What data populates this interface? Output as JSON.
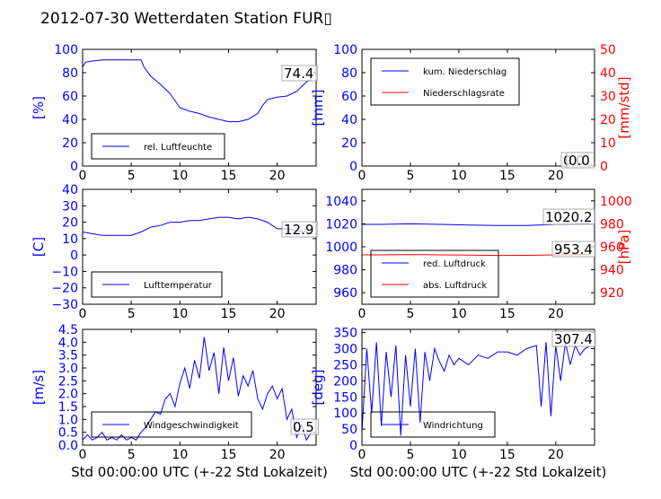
{
  "title": "2012-07-30 Wetterdaten Station FUR▯",
  "colors": {
    "left_axis": "#0000ff",
    "right_axis": "#ff0000",
    "series_blue": "#0000ff",
    "series_red": "#ff0000"
  },
  "chart_data": [
    {
      "id": "humidity",
      "type": "line",
      "xlim": [
        0,
        24
      ],
      "xticks": [
        0,
        5,
        10,
        15,
        20
      ],
      "xlabel": "",
      "ylim": [
        0,
        100
      ],
      "yticks": [
        0,
        20,
        40,
        60,
        80,
        100
      ],
      "ylabel": "[%]",
      "legend": "lower-left",
      "current_value": "74.4",
      "series": [
        {
          "name": "rel. Luftfeuchte",
          "axis": "left",
          "color": "#0000ff",
          "x": [
            0,
            0.3,
            1,
            2,
            3,
            4,
            5,
            6,
            6.3,
            7,
            8,
            9,
            10,
            11,
            12,
            13,
            14,
            15,
            16,
            17,
            18,
            18.5,
            19,
            20,
            21,
            22,
            23,
            23.5
          ],
          "y": [
            85,
            89,
            90,
            91,
            91,
            91,
            91,
            91,
            85,
            77,
            70,
            62,
            50,
            47,
            45,
            42,
            40,
            38,
            38,
            40,
            45,
            52,
            57,
            59,
            60,
            64,
            72,
            74.4
          ]
        }
      ]
    },
    {
      "id": "precip",
      "type": "line",
      "xlim": [
        0,
        24
      ],
      "xticks": [
        0,
        5,
        10,
        15,
        20
      ],
      "xlabel": "",
      "ylim": [
        0,
        100
      ],
      "yticks": [
        0,
        20,
        40,
        60,
        80,
        100
      ],
      "ylabel": "[mm]",
      "y2lim": [
        0,
        50
      ],
      "y2ticks": [
        0,
        10,
        20,
        30,
        40,
        50
      ],
      "y2label": "[mm/std]",
      "legend": "top-left",
      "current_value": "0.0",
      "current_value2": "0.0",
      "series": [
        {
          "name": "kum. Niederschlag",
          "axis": "left",
          "color": "#0000ff",
          "x": [
            0,
            24
          ],
          "y": [
            0,
            0
          ]
        },
        {
          "name": "Niederschlagsrate",
          "axis": "right",
          "color": "#ff0000",
          "x": [
            0,
            24
          ],
          "y": [
            0,
            0
          ]
        }
      ]
    },
    {
      "id": "temperature",
      "type": "line",
      "xlim": [
        0,
        24
      ],
      "xticks": [
        0,
        5,
        10,
        15,
        20
      ],
      "xlabel": "",
      "ylim": [
        -30,
        40
      ],
      "yticks": [
        -30,
        -20,
        -10,
        0,
        10,
        20,
        30,
        40
      ],
      "ylabel": "[C]",
      "legend": "lower-left",
      "current_value": "12.9",
      "series": [
        {
          "name": "Lufttemperatur",
          "axis": "left",
          "color": "#0000ff",
          "x": [
            0,
            1,
            2,
            3,
            4,
            5,
            6,
            7,
            8,
            9,
            10,
            11,
            12,
            13,
            14,
            15,
            16,
            17,
            18,
            19,
            20,
            21,
            22,
            23,
            23.5
          ],
          "y": [
            14,
            13,
            12,
            12,
            12,
            12,
            14,
            17,
            18,
            20,
            20,
            21,
            21,
            22,
            23,
            23,
            22,
            23,
            22,
            20,
            16,
            16,
            15,
            14,
            12.9
          ]
        }
      ]
    },
    {
      "id": "pressure",
      "type": "line",
      "xlim": [
        0,
        24
      ],
      "xticks": [
        0,
        5,
        10,
        15,
        20
      ],
      "xlabel": "",
      "ylim": [
        950,
        1050
      ],
      "yticks": [
        960,
        980,
        1000,
        1020,
        1040
      ],
      "ylabel": "",
      "y2lim": [
        910,
        1010
      ],
      "y2ticks": [
        920,
        940,
        960,
        980,
        1000
      ],
      "y2label": "[hPa]",
      "legend": "lower-left",
      "current_value": "1020.2",
      "current_value2": "953.4",
      "series": [
        {
          "name": "red. Luftdruck",
          "axis": "left",
          "color": "#0000ff",
          "x": [
            0,
            2,
            5,
            8,
            11,
            14,
            17,
            20,
            23.5
          ],
          "y": [
            1019.5,
            1019.5,
            1020,
            1019.5,
            1019,
            1018.5,
            1018.5,
            1019.5,
            1020.2
          ]
        },
        {
          "name": "abs. Luftdruck",
          "axis": "right",
          "color": "#ff0000",
          "x": [
            0,
            2,
            5,
            8,
            11,
            14,
            17,
            20,
            23.5
          ],
          "y": [
            953,
            953,
            953.3,
            953,
            952.8,
            952.5,
            952.6,
            953,
            953.4
          ]
        }
      ]
    },
    {
      "id": "wind_speed",
      "type": "line",
      "xlim": [
        0,
        24
      ],
      "xticks": [
        0,
        5,
        10,
        15,
        20
      ],
      "xlabel": "Std 00:00:00 UTC (+-22 Std Lokalzeit)",
      "ylim": [
        0,
        4.5
      ],
      "yticks": [
        0.0,
        0.5,
        1.0,
        1.5,
        2.0,
        2.5,
        3.0,
        3.5,
        4.0,
        4.5
      ],
      "ylabel": "[m/s]",
      "legend": "lower-left",
      "current_value": "0.5",
      "series": [
        {
          "name": "Windgeschwindigkeit",
          "axis": "left",
          "color": "#0000ff",
          "x": [
            0,
            0.5,
            1,
            1.5,
            2,
            2.5,
            3,
            3.5,
            4,
            4.5,
            5,
            5.5,
            6,
            6.5,
            7,
            7.5,
            8,
            8.5,
            9,
            9.5,
            10,
            10.5,
            11,
            11.5,
            12,
            12.5,
            13,
            13.5,
            14,
            14.5,
            15,
            15.5,
            16,
            16.5,
            17,
            17.5,
            18,
            18.5,
            19,
            19.5,
            20,
            20.5,
            21,
            21.5,
            22,
            22.5,
            23,
            23.5
          ],
          "y": [
            0.2,
            0.4,
            0.2,
            0.3,
            0.5,
            0.2,
            0.3,
            0.2,
            0.4,
            0.2,
            0.3,
            0.2,
            0.5,
            0.7,
            1.0,
            1.3,
            1.2,
            1.8,
            2.0,
            1.5,
            2.4,
            3.0,
            2.2,
            3.3,
            2.6,
            4.2,
            2.9,
            3.6,
            2.0,
            3.8,
            2.5,
            3.4,
            1.9,
            2.7,
            2.3,
            2.9,
            1.8,
            1.4,
            2.0,
            2.3,
            1.8,
            2.2,
            1.0,
            1.4,
            0.3,
            0.8,
            0.2,
            0.5
          ]
        }
      ]
    },
    {
      "id": "wind_direction",
      "type": "line",
      "xlim": [
        0,
        24
      ],
      "xticks": [
        0,
        5,
        10,
        15,
        20
      ],
      "xlabel": "Std 00:00:00 UTC (+-22 Std Lokalzeit)",
      "ylim": [
        0,
        360
      ],
      "yticks": [
        0,
        50,
        100,
        150,
        200,
        250,
        300,
        350
      ],
      "ylabel": "[deg]",
      "legend": "lower-left",
      "current_value": "307.4",
      "series": [
        {
          "name": "Windrichtung",
          "axis": "left",
          "color": "#0000ff",
          "x": [
            0,
            0.5,
            1,
            1.5,
            2,
            2.5,
            3,
            3.5,
            4,
            4.5,
            5,
            5.5,
            6,
            6.5,
            7,
            7.5,
            8,
            8.5,
            9,
            9.5,
            10,
            11,
            12,
            13,
            14,
            15,
            16,
            17,
            18,
            18.5,
            19,
            19.5,
            20,
            20.5,
            21,
            21.5,
            22,
            22.5,
            23,
            23.5
          ],
          "y": [
            40,
            300,
            100,
            320,
            60,
            290,
            150,
            310,
            30,
            280,
            120,
            300,
            70,
            290,
            200,
            300,
            260,
            230,
            280,
            250,
            270,
            250,
            280,
            270,
            290,
            290,
            280,
            300,
            310,
            120,
            320,
            90,
            310,
            200,
            320,
            250,
            310,
            280,
            300,
            307.4
          ]
        }
      ]
    }
  ]
}
